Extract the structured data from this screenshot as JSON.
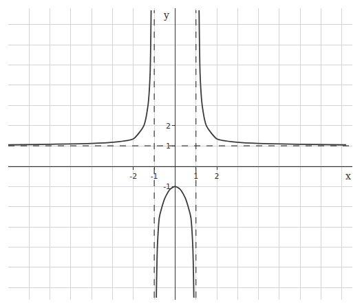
{
  "chart_data": {
    "type": "line",
    "x_label": "x",
    "y_label": "y",
    "xlim": [
      -8,
      8.5
    ],
    "ylim": [
      -6.6,
      7.8
    ],
    "xticks": [
      -2,
      -1,
      1,
      2
    ],
    "yticks": [
      -1,
      1,
      2
    ],
    "grid": true,
    "color": "#3a3a3a",
    "series": [
      {
        "x": [
          -8,
          -6,
          -4,
          -3,
          -2,
          -1.5,
          -1.3,
          -1.2,
          -1.15
        ],
        "values": [
          1.05,
          1.08,
          1.12,
          1.18,
          1.35,
          2.0,
          3.0,
          4.5,
          7.7
        ],
        "line_style": "solid"
      },
      {
        "x": [
          1.15,
          1.2,
          1.3,
          1.5,
          2,
          3,
          4,
          6,
          8.2
        ],
        "values": [
          7.7,
          4.5,
          3.0,
          2.0,
          1.35,
          1.18,
          1.12,
          1.08,
          1.05
        ],
        "line_style": "solid"
      },
      {
        "x": [
          -0.9,
          -0.85,
          -0.75,
          -0.5,
          -0.25,
          0,
          0.25,
          0.5,
          0.75,
          0.85,
          0.9
        ],
        "values": [
          -6.5,
          -4.0,
          -2.5,
          -1.6,
          -1.15,
          -1.0,
          -1.15,
          -1.6,
          -2.5,
          -4.0,
          -6.5
        ],
        "line_style": "solid"
      },
      {
        "x": [
          -1,
          -1
        ],
        "values": [
          -6.5,
          7.7
        ],
        "line_style": "dashed"
      },
      {
        "x": [
          1,
          1
        ],
        "values": [
          -6.5,
          7.7
        ],
        "line_style": "dashed"
      },
      {
        "x": [
          -8,
          8.5
        ],
        "values": [
          1,
          1
        ],
        "line_style": "dashed"
      }
    ]
  }
}
